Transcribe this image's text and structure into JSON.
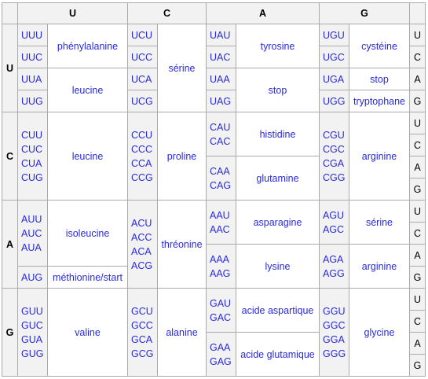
{
  "bases": [
    "U",
    "C",
    "A",
    "G"
  ],
  "cols": {
    "U": {
      "rows": {
        "U": {
          "codons": [
            [
              "UUU"
            ],
            [
              "UUC"
            ],
            [
              "UUA"
            ],
            [
              "UUG"
            ]
          ],
          "aa": [
            {
              "name": "phénylalanine",
              "span": 2
            },
            {
              "name": "leucine",
              "span": 2
            }
          ]
        },
        "C": {
          "codons": [
            [
              "CUU",
              "CUC",
              "CUA",
              "CUG"
            ]
          ],
          "aa": [
            {
              "name": "leucine",
              "span": 4
            }
          ]
        },
        "A": {
          "codons": [
            [
              "AUU",
              "AUC",
              "AUA"
            ],
            [
              "AUG"
            ]
          ],
          "aa": [
            {
              "name": "isoleucine",
              "span": 3
            },
            {
              "name": "méthionine/start",
              "span": 1
            }
          ]
        },
        "G": {
          "codons": [
            [
              "GUU",
              "GUC",
              "GUA",
              "GUG"
            ]
          ],
          "aa": [
            {
              "name": "valine",
              "span": 4
            }
          ]
        }
      }
    },
    "C": {
      "rows": {
        "U": {
          "codons": [
            [
              "UCU"
            ],
            [
              "UCC"
            ],
            [
              "UCA"
            ],
            [
              "UCG"
            ]
          ],
          "aa": [
            {
              "name": "sérine",
              "span": 4
            }
          ]
        },
        "C": {
          "codons": [
            [
              "CCU",
              "CCC",
              "CCA",
              "CCG"
            ]
          ],
          "aa": [
            {
              "name": "proline",
              "span": 4
            }
          ]
        },
        "A": {
          "codons": [
            [
              "ACU",
              "ACC",
              "ACA",
              "ACG"
            ]
          ],
          "aa": [
            {
              "name": "thréonine",
              "span": 4
            }
          ]
        },
        "G": {
          "codons": [
            [
              "GCU",
              "GCC",
              "GCA",
              "GCG"
            ]
          ],
          "aa": [
            {
              "name": "alanine",
              "span": 4
            }
          ]
        }
      }
    },
    "A": {
      "rows": {
        "U": {
          "codons": [
            [
              "UAU"
            ],
            [
              "UAC"
            ],
            [
              "UAA"
            ],
            [
              "UAG"
            ]
          ],
          "aa": [
            {
              "name": "tyrosine",
              "span": 2
            },
            {
              "name": "stop",
              "span": 2
            }
          ]
        },
        "C": {
          "codons": [
            [
              "CAU",
              "CAC"
            ],
            [
              "CAA",
              "CAG"
            ]
          ],
          "aa": [
            {
              "name": "histidine",
              "span": 2
            },
            {
              "name": "glutamine",
              "span": 2
            }
          ]
        },
        "A": {
          "codons": [
            [
              "AAU",
              "AAC"
            ],
            [
              "AAA",
              "AAG"
            ]
          ],
          "aa": [
            {
              "name": "asparagine",
              "span": 2
            },
            {
              "name": "lysine",
              "span": 2
            }
          ]
        },
        "G": {
          "codons": [
            [
              "GAU",
              "GAC"
            ],
            [
              "GAA",
              "GAG"
            ]
          ],
          "aa": [
            {
              "name": "acide aspartique",
              "span": 2
            },
            {
              "name": "acide glutamique",
              "span": 2
            }
          ]
        }
      }
    },
    "G": {
      "rows": {
        "U": {
          "codons": [
            [
              "UGU"
            ],
            [
              "UGC"
            ],
            [
              "UGA"
            ],
            [
              "UGG"
            ]
          ],
          "aa": [
            {
              "name": "cystéine",
              "span": 2
            },
            {
              "name": "stop",
              "span": 1
            },
            {
              "name": "tryptophane",
              "span": 1
            }
          ]
        },
        "C": {
          "codons": [
            [
              "CGU",
              "CGC",
              "CGA",
              "CGG"
            ]
          ],
          "aa": [
            {
              "name": "arginine",
              "span": 4
            }
          ]
        },
        "A": {
          "codons": [
            [
              "AGU",
              "AGC"
            ],
            [
              "AGA",
              "AGG"
            ]
          ],
          "aa": [
            {
              "name": "sérine",
              "span": 2
            },
            {
              "name": "arginine",
              "span": 2
            }
          ]
        },
        "G": {
          "codons": [
            [
              "GGU",
              "GGC",
              "GGA",
              "GGG"
            ]
          ],
          "aa": [
            {
              "name": "glycine",
              "span": 4
            }
          ]
        }
      }
    }
  },
  "colors": {
    "text": "#2a2adb",
    "header_bg": "#f2f2f2",
    "border": "#aaaaaa"
  }
}
